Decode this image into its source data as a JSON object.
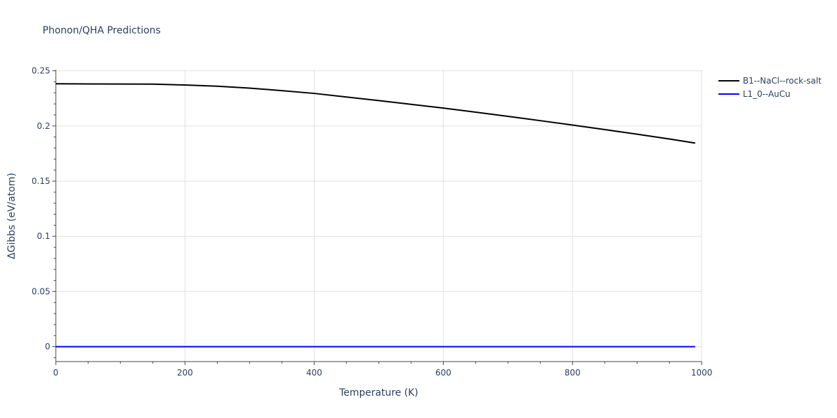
{
  "chart_data": {
    "type": "line",
    "title": "Phonon/QHA Predictions",
    "xlabel": "Temperature (K)",
    "ylabel": "ΔGibbs (eV/atom)",
    "xlim": [
      0,
      1000
    ],
    "ylim": [
      -0.0135,
      0.251
    ],
    "xticks": [
      0,
      200,
      400,
      600,
      800,
      1000
    ],
    "xtick_labels": [
      "0",
      "200",
      "400",
      "600",
      "800",
      "1000"
    ],
    "yticks": [
      0,
      0.05,
      0.1,
      0.15,
      0.2,
      0.25
    ],
    "ytick_labels": [
      "0",
      "0.05",
      "0.1",
      "0.15",
      "0.2",
      "0.25"
    ],
    "grid": true,
    "legend_position": "top-right",
    "series": [
      {
        "name": "B1--NaCl--rock-salt",
        "color": "#000000",
        "x": [
          0,
          50,
          100,
          150,
          200,
          250,
          300,
          350,
          400,
          450,
          500,
          550,
          600,
          650,
          700,
          750,
          800,
          850,
          900,
          950,
          990
        ],
        "y": [
          0.2382,
          0.2381,
          0.238,
          0.2379,
          0.2371,
          0.236,
          0.2343,
          0.232,
          0.2295,
          0.2262,
          0.223,
          0.2196,
          0.2162,
          0.2125,
          0.2087,
          0.2048,
          0.2008,
          0.1967,
          0.1925,
          0.1882,
          0.1845
        ]
      },
      {
        "name": "L1_0--AuCu",
        "color": "#0000ff",
        "x": [
          0,
          990
        ],
        "y": [
          0,
          0
        ]
      }
    ]
  }
}
